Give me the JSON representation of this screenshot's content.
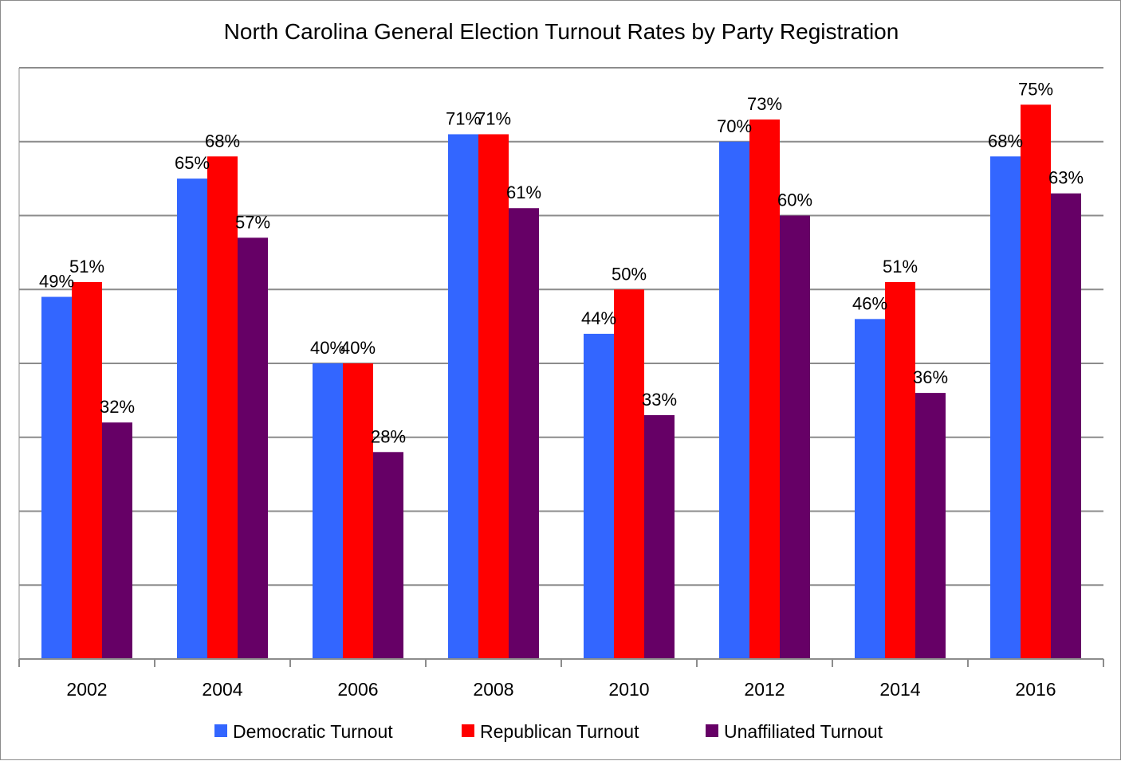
{
  "chart_data": {
    "type": "bar",
    "title": "North Carolina General Election Turnout Rates by Party Registration",
    "xlabel": "",
    "ylabel": "",
    "ylim": [
      0,
      80
    ],
    "grid": true,
    "y_tick_labels_visible": false,
    "legend_position": "bottom",
    "categories": [
      "2002",
      "2004",
      "2006",
      "2008",
      "2010",
      "2012",
      "2014",
      "2016"
    ],
    "series": [
      {
        "name": "Democratic Turnout",
        "color": "#3366ff",
        "values": [
          49,
          65,
          40,
          71,
          44,
          70,
          46,
          68
        ],
        "labels": [
          "49%",
          "65%",
          "40%",
          "71%",
          "44%",
          "70%",
          "46%",
          "68%"
        ]
      },
      {
        "name": "Republican Turnout",
        "color": "#ff0000",
        "values": [
          51,
          68,
          40,
          71,
          50,
          73,
          51,
          75
        ],
        "labels": [
          "51%",
          "68%",
          "40%",
          "71%",
          "50%",
          "73%",
          "51%",
          "75%"
        ]
      },
      {
        "name": "Unaffiliated Turnout",
        "color": "#660066",
        "values": [
          32,
          57,
          28,
          61,
          33,
          60,
          36,
          63
        ],
        "labels": [
          "32%",
          "57%",
          "28%",
          "61%",
          "33%",
          "60%",
          "36%",
          "63%"
        ]
      }
    ]
  }
}
